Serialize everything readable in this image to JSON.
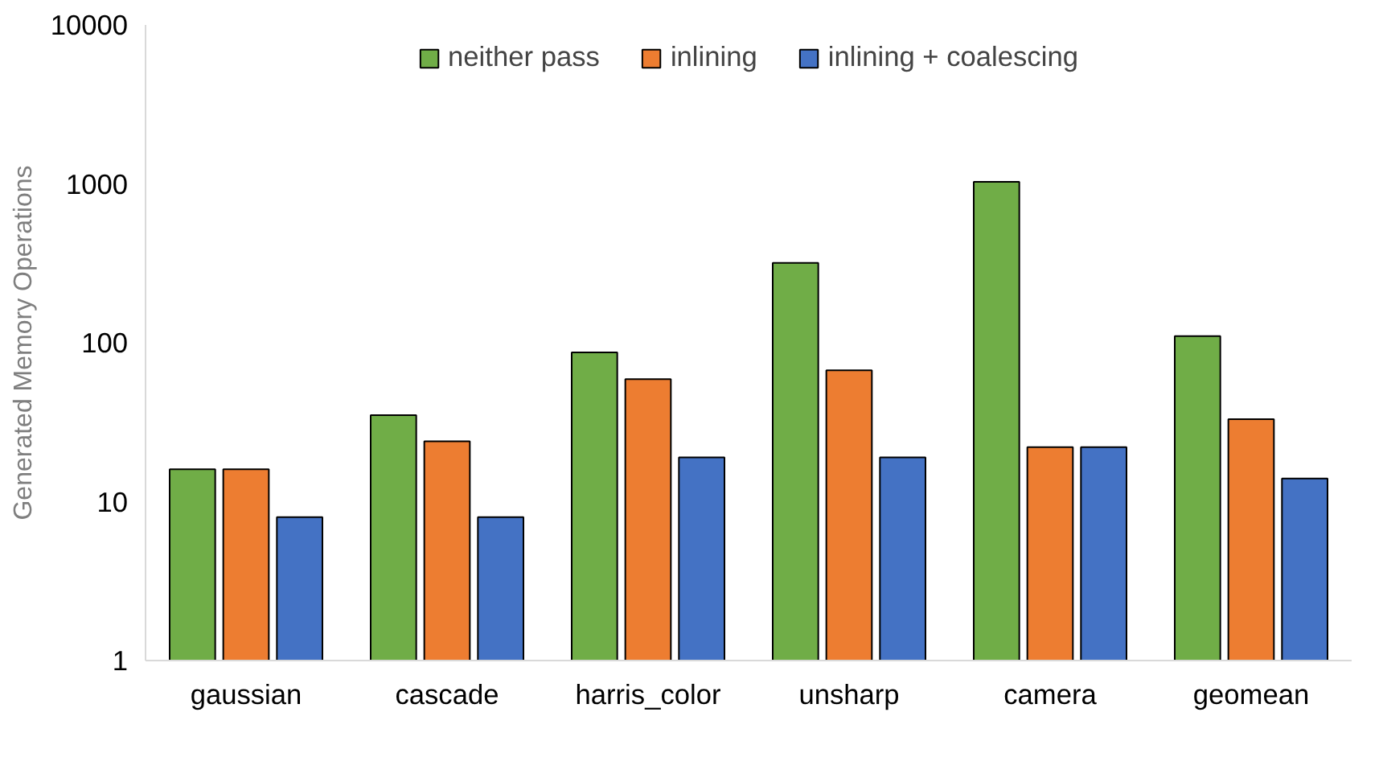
{
  "chart_data": {
    "type": "bar",
    "ylabel": "Generated Memory Operations",
    "categories": [
      "gaussian",
      "cascade",
      "harris_color",
      "unsharp",
      "camera",
      "geomean"
    ],
    "series": [
      {
        "name": "neither pass",
        "color": "#70ad47",
        "values": [
          16,
          35,
          87,
          318,
          1030,
          110
        ]
      },
      {
        "name": "inlining",
        "color": "#ed7d31",
        "values": [
          16,
          24,
          59,
          67,
          22,
          33
        ]
      },
      {
        "name": "inlining + coalescing",
        "color": "#4472c4",
        "values": [
          8,
          8,
          19,
          19,
          22,
          14
        ]
      }
    ],
    "log": "y",
    "ylim": [
      1,
      10000
    ],
    "yticks": [
      1,
      10,
      100,
      1000,
      10000
    ],
    "grid": false,
    "legend": "top"
  }
}
